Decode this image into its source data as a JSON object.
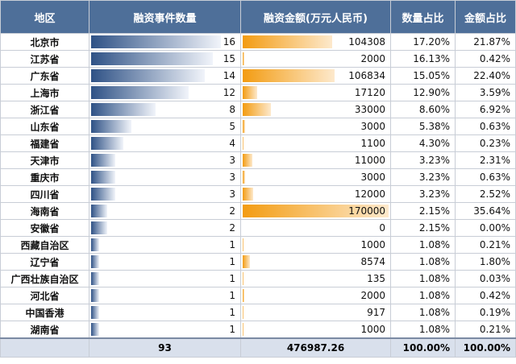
{
  "headers": {
    "region": "地区",
    "count": "融资事件数量",
    "amount": "融资金额(万元人民币)",
    "count_share": "数量占比",
    "amount_share": "金额占比"
  },
  "rows": [
    {
      "region": "北京市",
      "count": 16,
      "amount": 104308,
      "count_share": "17.20%",
      "amount_share": "21.87%"
    },
    {
      "region": "江苏省",
      "count": 15,
      "amount": 2000,
      "count_share": "16.13%",
      "amount_share": "0.42%"
    },
    {
      "region": "广东省",
      "count": 14,
      "amount": 106834,
      "count_share": "15.05%",
      "amount_share": "22.40%"
    },
    {
      "region": "上海市",
      "count": 12,
      "amount": 17120,
      "count_share": "12.90%",
      "amount_share": "3.59%"
    },
    {
      "region": "浙江省",
      "count": 8,
      "amount": 33000,
      "count_share": "8.60%",
      "amount_share": "6.92%"
    },
    {
      "region": "山东省",
      "count": 5,
      "amount": 3000,
      "count_share": "5.38%",
      "amount_share": "0.63%"
    },
    {
      "region": "福建省",
      "count": 4,
      "amount": 1100,
      "count_share": "4.30%",
      "amount_share": "0.23%"
    },
    {
      "region": "天津市",
      "count": 3,
      "amount": 11000,
      "count_share": "3.23%",
      "amount_share": "2.31%"
    },
    {
      "region": "重庆市",
      "count": 3,
      "amount": 3000,
      "count_share": "3.23%",
      "amount_share": "0.63%"
    },
    {
      "region": "四川省",
      "count": 3,
      "amount": 12000,
      "count_share": "3.23%",
      "amount_share": "2.52%"
    },
    {
      "region": "海南省",
      "count": 2,
      "amount": 170000,
      "count_share": "2.15%",
      "amount_share": "35.64%"
    },
    {
      "region": "安徽省",
      "count": 2,
      "amount": 0,
      "count_share": "2.15%",
      "amount_share": "0.00%"
    },
    {
      "region": "西藏自治区",
      "count": 1,
      "amount": 1000,
      "count_share": "1.08%",
      "amount_share": "0.21%"
    },
    {
      "region": "辽宁省",
      "count": 1,
      "amount": 8574,
      "count_share": "1.08%",
      "amount_share": "1.80%"
    },
    {
      "region": "广西壮族自治区",
      "count": 1,
      "amount": 135,
      "count_share": "1.08%",
      "amount_share": "0.03%"
    },
    {
      "region": "河北省",
      "count": 1,
      "amount": 2000,
      "count_share": "1.08%",
      "amount_share": "0.42%"
    },
    {
      "region": "中国香港",
      "count": 1,
      "amount": 917,
      "count_share": "1.08%",
      "amount_share": "0.19%"
    },
    {
      "region": "湖南省",
      "count": 1,
      "amount": 1000,
      "count_share": "1.08%",
      "amount_share": "0.21%"
    }
  ],
  "totals": {
    "region": "",
    "count": "93",
    "amount": "476987.26",
    "count_share": "100.00%",
    "amount_share": "100.00%"
  },
  "colors": {
    "header_bg": "#4e6f99",
    "count_bar": "#2f5286",
    "amount_bar": "#f39c12",
    "total_bg": "#d9e0ec"
  }
}
